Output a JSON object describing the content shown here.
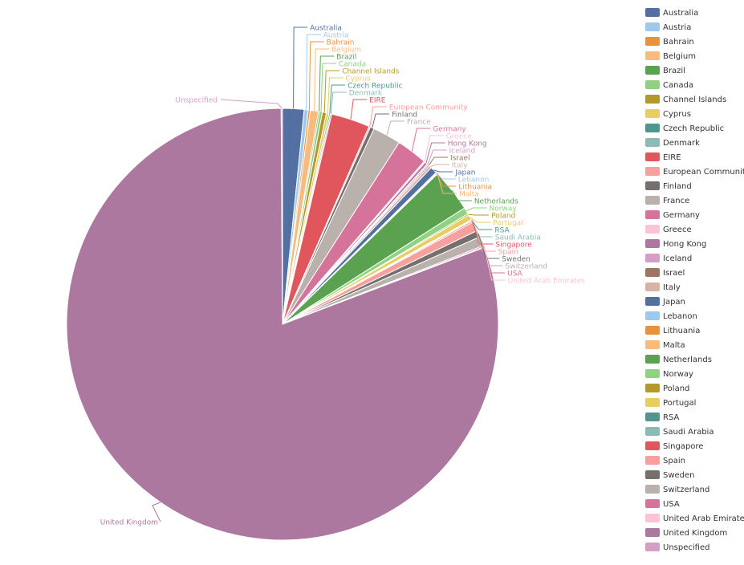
{
  "chart_data": {
    "type": "pie",
    "title": "",
    "legend_position": "right",
    "slices": [
      {
        "label": "Australia",
        "value": 1.6,
        "color": "#5470a3"
      },
      {
        "label": "Austria",
        "value": 0.3,
        "color": "#9fc9ea"
      },
      {
        "label": "Bahrain",
        "value": 0.15,
        "color": "#e8923b"
      },
      {
        "label": "Belgium",
        "value": 0.6,
        "color": "#f6bb7d"
      },
      {
        "label": "Brazil",
        "value": 0.1,
        "color": "#5aa150"
      },
      {
        "label": "Canada",
        "value": 0.2,
        "color": "#8ed282"
      },
      {
        "label": "Channel Islands",
        "value": 0.3,
        "color": "#b3982c"
      },
      {
        "label": "Cyprus",
        "value": 0.2,
        "color": "#e8cd60"
      },
      {
        "label": "Czech Republic",
        "value": 0.1,
        "color": "#4f968e"
      },
      {
        "label": "Denmark",
        "value": 0.1,
        "color": "#8cbbb4"
      },
      {
        "label": "EIRE",
        "value": 2.9,
        "color": "#e0565c"
      },
      {
        "label": "European Community",
        "value": 0.1,
        "color": "#f7a09e"
      },
      {
        "label": "Finland",
        "value": 0.3,
        "color": "#75706e"
      },
      {
        "label": "France",
        "value": 2.1,
        "color": "#bab1ac"
      },
      {
        "label": "Germany",
        "value": 2.3,
        "color": "#d6739a"
      },
      {
        "label": "Greece",
        "value": 0.1,
        "color": "#fbc3d3"
      },
      {
        "label": "Hong Kong",
        "value": 0.2,
        "color": "#ad789f"
      },
      {
        "label": "Iceland",
        "value": 0.1,
        "color": "#d59ec6"
      },
      {
        "label": "Israel",
        "value": 0.1,
        "color": "#9c7660"
      },
      {
        "label": "Italy",
        "value": 0.2,
        "color": "#d8b2a4"
      },
      {
        "label": "Japan",
        "value": 0.5,
        "color": "#5470a3"
      },
      {
        "label": "Lebanon",
        "value": 0.05,
        "color": "#9fc9ea"
      },
      {
        "label": "Lithuania",
        "value": 0.05,
        "color": "#e8923b"
      },
      {
        "label": "Malta",
        "value": 0.05,
        "color": "#f6bb7d"
      },
      {
        "label": "Netherlands",
        "value": 3.2,
        "color": "#5aa150"
      },
      {
        "label": "Norway",
        "value": 0.5,
        "color": "#8ed282"
      },
      {
        "label": "Poland",
        "value": 0.1,
        "color": "#b3982c"
      },
      {
        "label": "Portugal",
        "value": 0.4,
        "color": "#e8cd60"
      },
      {
        "label": "RSA",
        "value": 0.05,
        "color": "#4f968e"
      },
      {
        "label": "Saudi Arabia",
        "value": 0.05,
        "color": "#8cbbb4"
      },
      {
        "label": "Singapore",
        "value": 0.1,
        "color": "#e0565c"
      },
      {
        "label": "Spain",
        "value": 0.7,
        "color": "#f7a09e"
      },
      {
        "label": "Sweden",
        "value": 0.5,
        "color": "#75706e"
      },
      {
        "label": "Switzerland",
        "value": 0.7,
        "color": "#bab1ac"
      },
      {
        "label": "USA",
        "value": 0.1,
        "color": "#d6739a"
      },
      {
        "label": "United Arab Emirates",
        "value": 0.05,
        "color": "#fbc3d3"
      },
      {
        "label": "United Kingdom",
        "value": 80.4,
        "color": "#ad789f"
      },
      {
        "label": "Unspecified",
        "value": 0.1,
        "color": "#d59ec6"
      }
    ]
  }
}
